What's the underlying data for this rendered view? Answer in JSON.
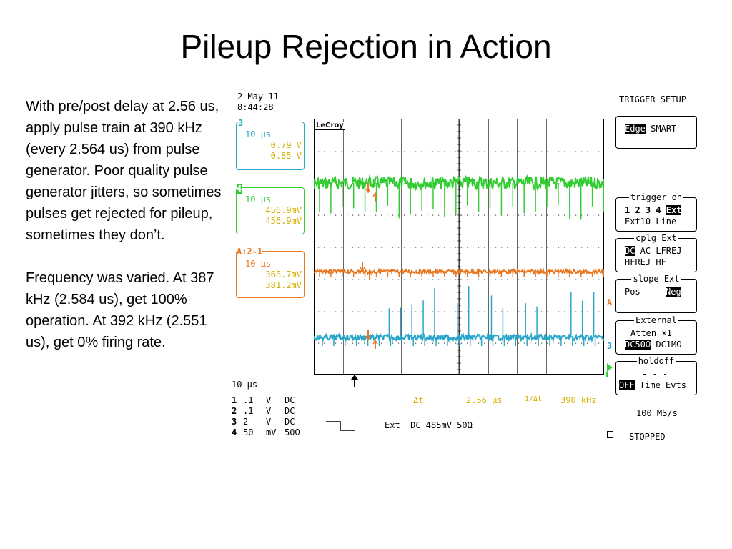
{
  "slide": {
    "title": "Pileup Rejection in Action",
    "paragraphs": [
      "With pre/post delay at 2.56 us, apply pulse train at 390 kHz (every 2.564 us) from pulse generator.  Poor quality pulse generator jitters, so sometimes pulses get rejected for pileup, sometimes they don’t.",
      "Frequency was varied.  At 387 kHz (2.584 us), get 100% operation.  At 392 kHz (2.551 us), get 0% firing rate."
    ]
  },
  "scope": {
    "date": "2-May-11",
    "time": "8:44:28",
    "brand": "LeCroy",
    "channels": [
      {
        "id": "3",
        "timebase": "10 µs",
        "v1": "0.79 V",
        "v2": "0.85 V",
        "color": "#29a6c9"
      },
      {
        "id": "4",
        "timebase": "10 µs",
        "v1": "456.9mV",
        "v2": "456.9mV",
        "color": "#33cc33"
      },
      {
        "id": "A:2-1",
        "timebase": "10 µs",
        "v1": "368.7mV",
        "v2": "381.2mV",
        "color": "#e87722"
      }
    ],
    "timebase": "10 µs",
    "coupling_rows": [
      {
        "ch": "1",
        "volts": ".1",
        "unit": "V",
        "coup": "DC"
      },
      {
        "ch": "2",
        "volts": ".1",
        "unit": "V",
        "coup": "DC"
      },
      {
        "ch": "3",
        "volts": "2",
        "unit": "V",
        "coup": "DC"
      },
      {
        "ch": "4",
        "volts": "50",
        "unit": "mV",
        "coup": "50Ω"
      }
    ],
    "delta_t_label": "Δt",
    "delta_t_value": "2.56 µs",
    "inv_dt_label": "1/Δt",
    "inv_dt_value": "390 kHz",
    "trigger_info": "Ext  DC 485mV 50Ω",
    "sample_rate": "100 MS/s",
    "status": "STOPPED",
    "trace_labels": {
      "a": "A",
      "three": "3"
    },
    "colors": {
      "green": "#33cc33",
      "orange": "#e87722",
      "cyan": "#29a6c9",
      "magenta": "#e020c0",
      "yellow": "#d4b000"
    }
  },
  "trigger_menu": {
    "title": "TRIGGER SETUP",
    "type": {
      "edge": "Edge",
      "smart": "SMART"
    },
    "trigger_on": {
      "title": "trigger on",
      "chs": "1 2 3 4 ",
      "ext": "Ext",
      "line2": "Ext10 Line"
    },
    "cplg": {
      "title": "cplg Ext",
      "dc": "DC",
      "rest": " AC LFREJ",
      "line2": "HFREJ HF"
    },
    "slope": {
      "title": "slope Ext",
      "pos": "Pos",
      "neg": "Neg"
    },
    "external": {
      "title": "External",
      "line1": "Atten ×1",
      "dc50": "DC50Ω",
      "dc1m": " DC1MΩ"
    },
    "holdoff": {
      "title": "holdoff",
      "line1": "- - -",
      "off": "OFF",
      "rest": " Time Evts"
    }
  }
}
